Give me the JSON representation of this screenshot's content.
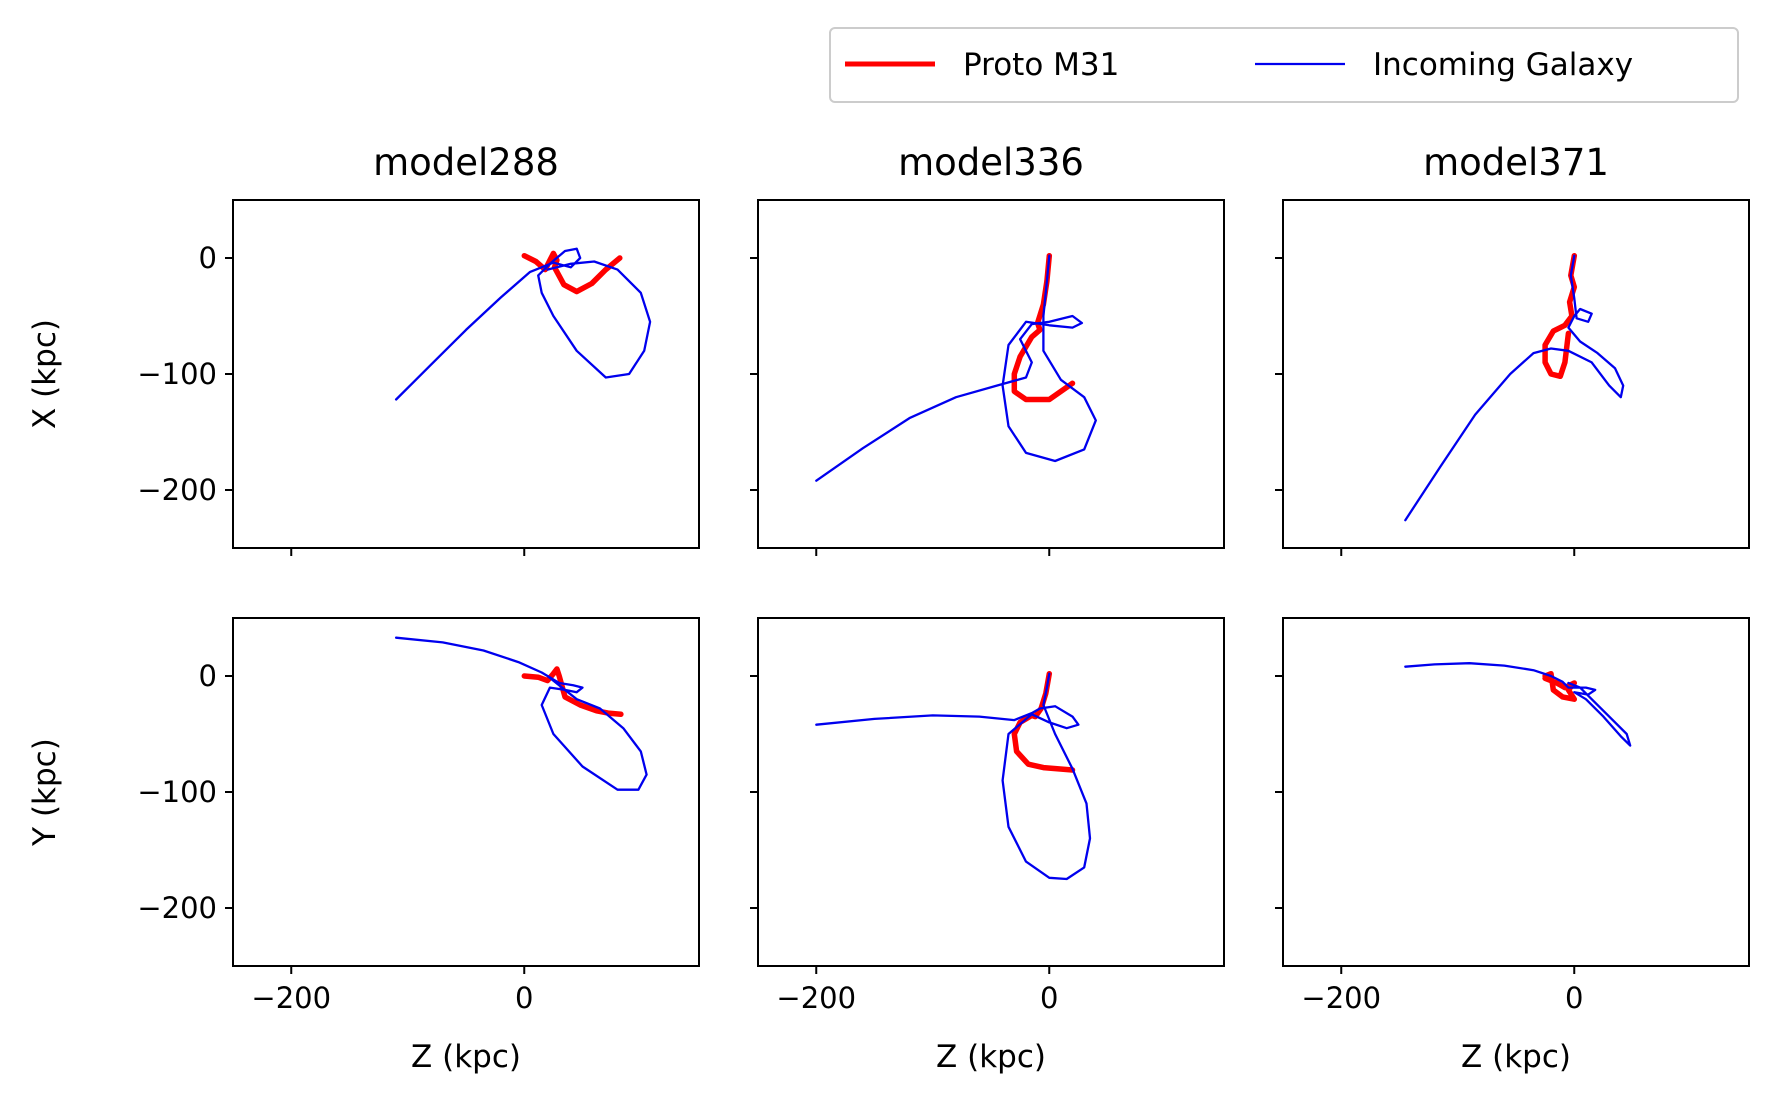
{
  "chart_data": {
    "type": "line",
    "legend": {
      "placement": "top-right",
      "entries": [
        {
          "series": "proto",
          "label": "Proto M31"
        },
        {
          "series": "incoming",
          "label": "Incoming Galaxy"
        }
      ]
    },
    "colors": {
      "proto": "#ff0000",
      "incoming": "#0000ee"
    },
    "xlabel": "Z (kpc)",
    "ylabels": {
      "X": "X (kpc)",
      "Y": "Y (kpc)"
    },
    "xlim": [
      -250,
      150
    ],
    "ylim": [
      -250,
      50
    ],
    "xticks": [
      -200,
      0
    ],
    "yticks": [
      0,
      -100,
      -200
    ],
    "models": [
      {
        "title": "model288",
        "X": {
          "proto": [
            [
              0,
              2
            ],
            [
              10,
              -3
            ],
            [
              18,
              -10
            ],
            [
              22,
              -2
            ],
            [
              25,
              4
            ],
            [
              28,
              -2
            ],
            [
              26,
              -8
            ],
            [
              34,
              -23
            ],
            [
              45,
              -29
            ],
            [
              58,
              -22
            ],
            [
              70,
              -10
            ],
            [
              82,
              0
            ]
          ],
          "incoming": [
            [
              -110,
              -122
            ],
            [
              -80,
              -92
            ],
            [
              -50,
              -62
            ],
            [
              -20,
              -34
            ],
            [
              5,
              -12
            ],
            [
              25,
              -4
            ],
            [
              40,
              -8
            ],
            [
              48,
              0
            ],
            [
              45,
              8
            ],
            [
              35,
              6
            ],
            [
              22,
              -5
            ],
            [
              12,
              -15
            ],
            [
              15,
              -30
            ],
            [
              25,
              -50
            ],
            [
              45,
              -80
            ],
            [
              70,
              -103
            ],
            [
              90,
              -100
            ],
            [
              103,
              -80
            ],
            [
              108,
              -55
            ],
            [
              100,
              -30
            ],
            [
              80,
              -10
            ],
            [
              60,
              -3
            ],
            [
              40,
              -5
            ],
            [
              20,
              -10
            ]
          ]
        },
        "Y": {
          "proto": [
            [
              0,
              0
            ],
            [
              12,
              -1
            ],
            [
              20,
              -4
            ],
            [
              25,
              2
            ],
            [
              28,
              6
            ],
            [
              30,
              0
            ],
            [
              35,
              -18
            ],
            [
              48,
              -25
            ],
            [
              62,
              -30
            ],
            [
              72,
              -32
            ],
            [
              83,
              -33
            ]
          ],
          "incoming": [
            [
              -110,
              33
            ],
            [
              -70,
              29
            ],
            [
              -35,
              22
            ],
            [
              -5,
              12
            ],
            [
              15,
              3
            ],
            [
              30,
              -6
            ],
            [
              42,
              -8
            ],
            [
              50,
              -10
            ],
            [
              45,
              -14
            ],
            [
              35,
              -12
            ],
            [
              22,
              -10
            ],
            [
              15,
              -25
            ],
            [
              25,
              -50
            ],
            [
              50,
              -78
            ],
            [
              80,
              -98
            ],
            [
              98,
              -98
            ],
            [
              105,
              -85
            ],
            [
              100,
              -65
            ],
            [
              85,
              -45
            ],
            [
              65,
              -28
            ],
            [
              45,
              -20
            ],
            [
              30,
              -8
            ],
            [
              20,
              0
            ]
          ]
        }
      },
      {
        "title": "model336",
        "X": {
          "proto": [
            [
              0,
              2
            ],
            [
              -2,
              -20
            ],
            [
              -5,
              -40
            ],
            [
              -10,
              -56
            ],
            [
              -8,
              -62
            ],
            [
              -15,
              -68
            ],
            [
              -25,
              -85
            ],
            [
              -30,
              -100
            ],
            [
              -30,
              -115
            ],
            [
              -20,
              -122
            ],
            [
              0,
              -122
            ],
            [
              20,
              -108
            ]
          ],
          "incoming": [
            [
              -200,
              -192
            ],
            [
              -160,
              -164
            ],
            [
              -120,
              -138
            ],
            [
              -80,
              -120
            ],
            [
              -45,
              -110
            ],
            [
              -20,
              -103
            ],
            [
              -15,
              -90
            ],
            [
              -25,
              -70
            ],
            [
              -15,
              -57
            ],
            [
              0,
              -55
            ],
            [
              20,
              -50
            ],
            [
              28,
              -56
            ],
            [
              20,
              -60
            ],
            [
              0,
              -58
            ],
            [
              -20,
              -55
            ],
            [
              -35,
              -75
            ],
            [
              -40,
              -110
            ],
            [
              -35,
              -145
            ],
            [
              -20,
              -168
            ],
            [
              5,
              -175
            ],
            [
              30,
              -165
            ],
            [
              40,
              -140
            ],
            [
              30,
              -120
            ],
            [
              10,
              -105
            ],
            [
              -5,
              -80
            ],
            [
              -5,
              -50
            ],
            [
              -2,
              -20
            ],
            [
              0,
              2
            ]
          ]
        },
        "Y": {
          "proto": [
            [
              0,
              2
            ],
            [
              -3,
              -15
            ],
            [
              -7,
              -28
            ],
            [
              -12,
              -35
            ],
            [
              -15,
              -34
            ],
            [
              -25,
              -40
            ],
            [
              -30,
              -50
            ],
            [
              -28,
              -65
            ],
            [
              -18,
              -76
            ],
            [
              -5,
              -79
            ],
            [
              20,
              -81
            ]
          ],
          "incoming": [
            [
              -200,
              -42
            ],
            [
              -150,
              -37
            ],
            [
              -100,
              -34
            ],
            [
              -60,
              -35
            ],
            [
              -30,
              -38
            ],
            [
              -15,
              -32
            ],
            [
              -8,
              -28
            ],
            [
              5,
              -26
            ],
            [
              20,
              -35
            ],
            [
              25,
              -42
            ],
            [
              15,
              -45
            ],
            [
              0,
              -40
            ],
            [
              -15,
              -33
            ],
            [
              -35,
              -50
            ],
            [
              -40,
              -90
            ],
            [
              -35,
              -130
            ],
            [
              -20,
              -160
            ],
            [
              0,
              -174
            ],
            [
              15,
              -175
            ],
            [
              30,
              -165
            ],
            [
              35,
              -140
            ],
            [
              32,
              -110
            ],
            [
              20,
              -80
            ],
            [
              5,
              -50
            ],
            [
              -5,
              -25
            ],
            [
              -2,
              -10
            ],
            [
              0,
              2
            ]
          ]
        }
      },
      {
        "title": "model371",
        "X": {
          "proto": [
            [
              0,
              2
            ],
            [
              -3,
              -15
            ],
            [
              0,
              -25
            ],
            [
              -4,
              -38
            ],
            [
              -2,
              -50
            ],
            [
              -8,
              -58
            ],
            [
              -18,
              -63
            ],
            [
              -25,
              -75
            ],
            [
              -25,
              -90
            ],
            [
              -20,
              -100
            ],
            [
              -12,
              -102
            ],
            [
              -8,
              -90
            ],
            [
              -5,
              -65
            ]
          ],
          "incoming": [
            [
              -145,
              -226
            ],
            [
              -115,
              -180
            ],
            [
              -85,
              -135
            ],
            [
              -55,
              -100
            ],
            [
              -35,
              -82
            ],
            [
              -20,
              -78
            ],
            [
              -5,
              -80
            ],
            [
              15,
              -90
            ],
            [
              30,
              -110
            ],
            [
              40,
              -120
            ],
            [
              42,
              -110
            ],
            [
              35,
              -95
            ],
            [
              20,
              -82
            ],
            [
              5,
              -72
            ],
            [
              -5,
              -60
            ],
            [
              0,
              -50
            ],
            [
              5,
              -44
            ],
            [
              15,
              -48
            ],
            [
              12,
              -55
            ],
            [
              2,
              -52
            ],
            [
              0,
              -35
            ],
            [
              -3,
              -15
            ],
            [
              0,
              2
            ]
          ]
        },
        "Y": {
          "proto": [
            [
              -25,
              0
            ],
            [
              -20,
              2
            ],
            [
              -18,
              -12
            ],
            [
              -10,
              -18
            ],
            [
              0,
              -20
            ],
            [
              -5,
              -12
            ],
            [
              0,
              -6
            ],
            [
              -8,
              -10
            ],
            [
              -15,
              -6
            ],
            [
              -25,
              -2
            ]
          ],
          "incoming": [
            [
              -145,
              8
            ],
            [
              -120,
              10
            ],
            [
              -90,
              11
            ],
            [
              -60,
              9
            ],
            [
              -35,
              5
            ],
            [
              -20,
              0
            ],
            [
              -10,
              -5
            ],
            [
              -5,
              -10
            ],
            [
              10,
              -10
            ],
            [
              18,
              -12
            ],
            [
              12,
              -16
            ],
            [
              0,
              -14
            ],
            [
              10,
              -20
            ],
            [
              25,
              -35
            ],
            [
              40,
              -52
            ],
            [
              48,
              -60
            ],
            [
              45,
              -50
            ],
            [
              30,
              -35
            ],
            [
              15,
              -20
            ],
            [
              5,
              -10
            ],
            [
              -5,
              -6
            ]
          ]
        }
      }
    ]
  }
}
